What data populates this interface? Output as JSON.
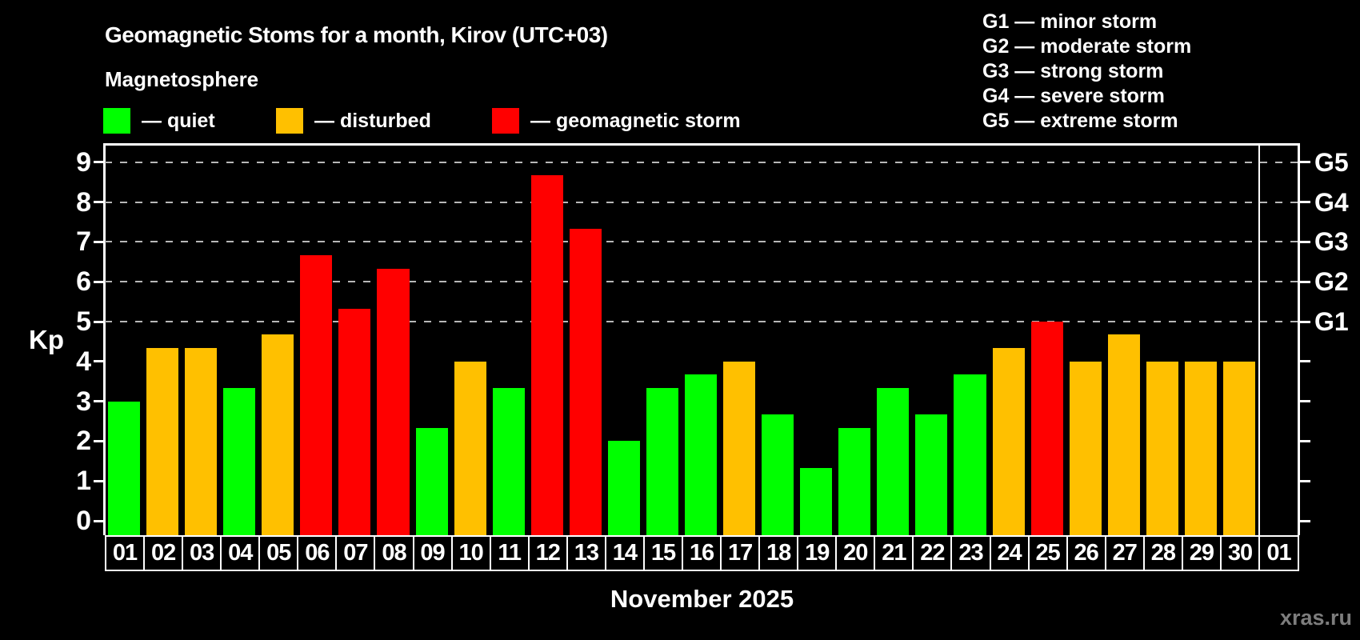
{
  "header": {
    "title": "Geomagnetic Stoms for a month, Kirov (UTC+03)",
    "subtitle": "Magnetosphere",
    "legend": [
      {
        "key": "quiet",
        "label": "— quiet"
      },
      {
        "key": "disturbed",
        "label": "— disturbed"
      },
      {
        "key": "storm",
        "label": "— geomagnetic storm"
      }
    ],
    "g_scale_legend": [
      "G1 — minor storm",
      "G2 — moderate storm",
      "G3 — strong storm",
      "G4 — severe storm",
      "G5 — extreme storm"
    ]
  },
  "chart_data": {
    "type": "bar",
    "title": "Geomagnetic Stoms for a month, Kirov (UTC+03)",
    "ylabel": "Kp",
    "xlabel": "November 2025",
    "ylim": [
      0,
      9
    ],
    "yticks": [
      0,
      1,
      2,
      3,
      4,
      5,
      6,
      7,
      8,
      9
    ],
    "gridlines_at": [
      5,
      6,
      7,
      8,
      9
    ],
    "grid_style": "dashed",
    "legend_position": "top-left",
    "right_axis": [
      {
        "kp": 5,
        "label": "G1"
      },
      {
        "kp": 6,
        "label": "G2"
      },
      {
        "kp": 7,
        "label": "G3"
      },
      {
        "kp": 8,
        "label": "G4"
      },
      {
        "kp": 9,
        "label": "G5"
      }
    ],
    "categories": [
      "01",
      "02",
      "03",
      "04",
      "05",
      "06",
      "07",
      "08",
      "09",
      "10",
      "11",
      "12",
      "13",
      "14",
      "15",
      "16",
      "17",
      "18",
      "19",
      "20",
      "21",
      "22",
      "23",
      "24",
      "25",
      "26",
      "27",
      "28",
      "29",
      "30",
      "01"
    ],
    "values": [
      3.0,
      4.33,
      4.33,
      3.33,
      4.67,
      6.67,
      5.33,
      6.33,
      2.33,
      4.0,
      3.33,
      8.67,
      7.33,
      2.0,
      3.33,
      3.67,
      4.0,
      2.67,
      1.33,
      2.33,
      3.33,
      2.67,
      3.67,
      4.33,
      5.0,
      4.0,
      4.67,
      4.0,
      4.0,
      4.0,
      null
    ],
    "statuses": [
      "quiet",
      "disturbed",
      "disturbed",
      "quiet",
      "disturbed",
      "storm",
      "storm",
      "storm",
      "quiet",
      "disturbed",
      "quiet",
      "storm",
      "storm",
      "quiet",
      "quiet",
      "quiet",
      "disturbed",
      "quiet",
      "quiet",
      "quiet",
      "quiet",
      "quiet",
      "quiet",
      "disturbed",
      "storm",
      "disturbed",
      "disturbed",
      "disturbed",
      "disturbed",
      "disturbed",
      null
    ],
    "colors": {
      "quiet": "#00ff00",
      "disturbed": "#ffc000",
      "storm": "#ff0000"
    },
    "background": "#000000",
    "gridline_color": "#b8b8b8"
  },
  "footer": {
    "xaxis_label": "November 2025",
    "watermark": "xras.ru"
  }
}
